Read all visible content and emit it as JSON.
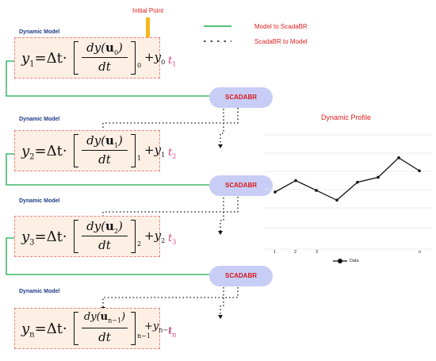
{
  "blocks": [
    {
      "model_label": "Dynamic Model",
      "lhs_sub": "1",
      "num_sub": "0",
      "bracket_sub": "0",
      "rhs_sub": "0",
      "t_sub": "1"
    },
    {
      "model_label": "Dynamic Model",
      "lhs_sub": "2",
      "num_sub": "1",
      "bracket_sub": "1",
      "rhs_sub": "1",
      "t_sub": "2"
    },
    {
      "model_label": "Dynamic Model",
      "lhs_sub": "3",
      "num_sub": "2",
      "bracket_sub": "2",
      "rhs_sub": "2",
      "t_sub": "3"
    },
    {
      "model_label": "Dynamic Model",
      "lhs_sub": "n",
      "num_sub": "n−1",
      "bracket_sub": "n−1",
      "rhs_sub": "n−1",
      "t_sub": "n"
    }
  ],
  "equation": {
    "y": "y",
    "delta_t": "Δt·",
    "dy": "dy",
    "u": "u",
    "dt": "dt",
    "t": "t",
    "eq": "="
  },
  "scadabr": [
    "SCADABR",
    "SCADABR",
    "SCADABR"
  ],
  "initial_point": "Initial Point",
  "legend": {
    "solid": "Model to ScadaBR",
    "dotted": "ScadaBR to Model"
  },
  "colors": {
    "green": "#1aab4a",
    "blue_label": "#1f3a86",
    "red": "#e0201f",
    "pink": "#e0407e",
    "scada_fill": "#c8cdf5",
    "box_fill": "#fdefe4",
    "arrow": "#f7b51d"
  },
  "chart_data": {
    "type": "line",
    "title": "Dynamic Profile",
    "x_ticks": [
      "1",
      "2",
      "3",
      "n"
    ],
    "legend_label": "Data",
    "series": [
      {
        "name": "Data",
        "values": [
          3.5,
          4.2,
          3.6,
          3.0,
          4.1,
          4.4,
          5.6,
          4.8
        ]
      }
    ],
    "ylim": [
      0,
      7
    ],
    "grid": "horizontal",
    "legend_placement": "bottom"
  }
}
